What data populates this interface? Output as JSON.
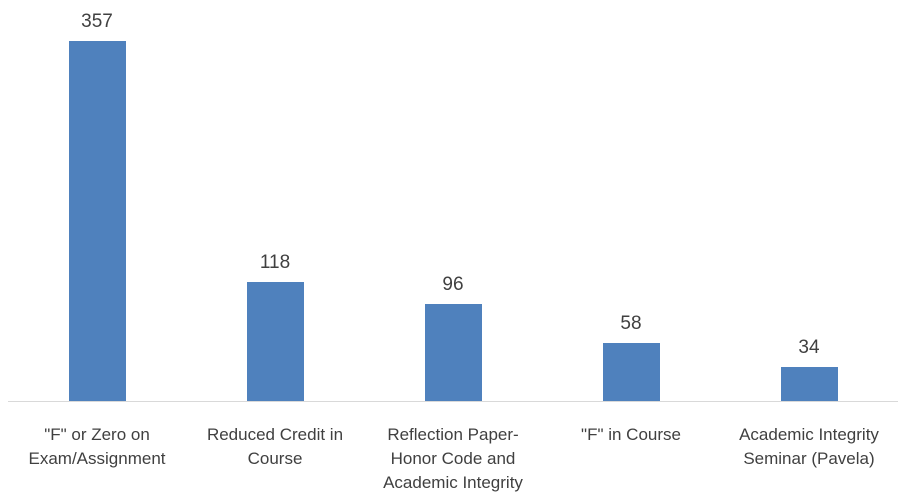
{
  "chart_data": {
    "type": "bar",
    "categories": [
      "\"F\" or Zero on Exam/Assignment",
      "Reduced Credit in Course",
      "Reflection Paper-Honor Code and Academic Integrity",
      "\"F\" in Course",
      "Academic Integrity Seminar (Pavela)"
    ],
    "values": [
      357,
      118,
      96,
      58,
      34
    ],
    "color": "#4f81bd"
  }
}
